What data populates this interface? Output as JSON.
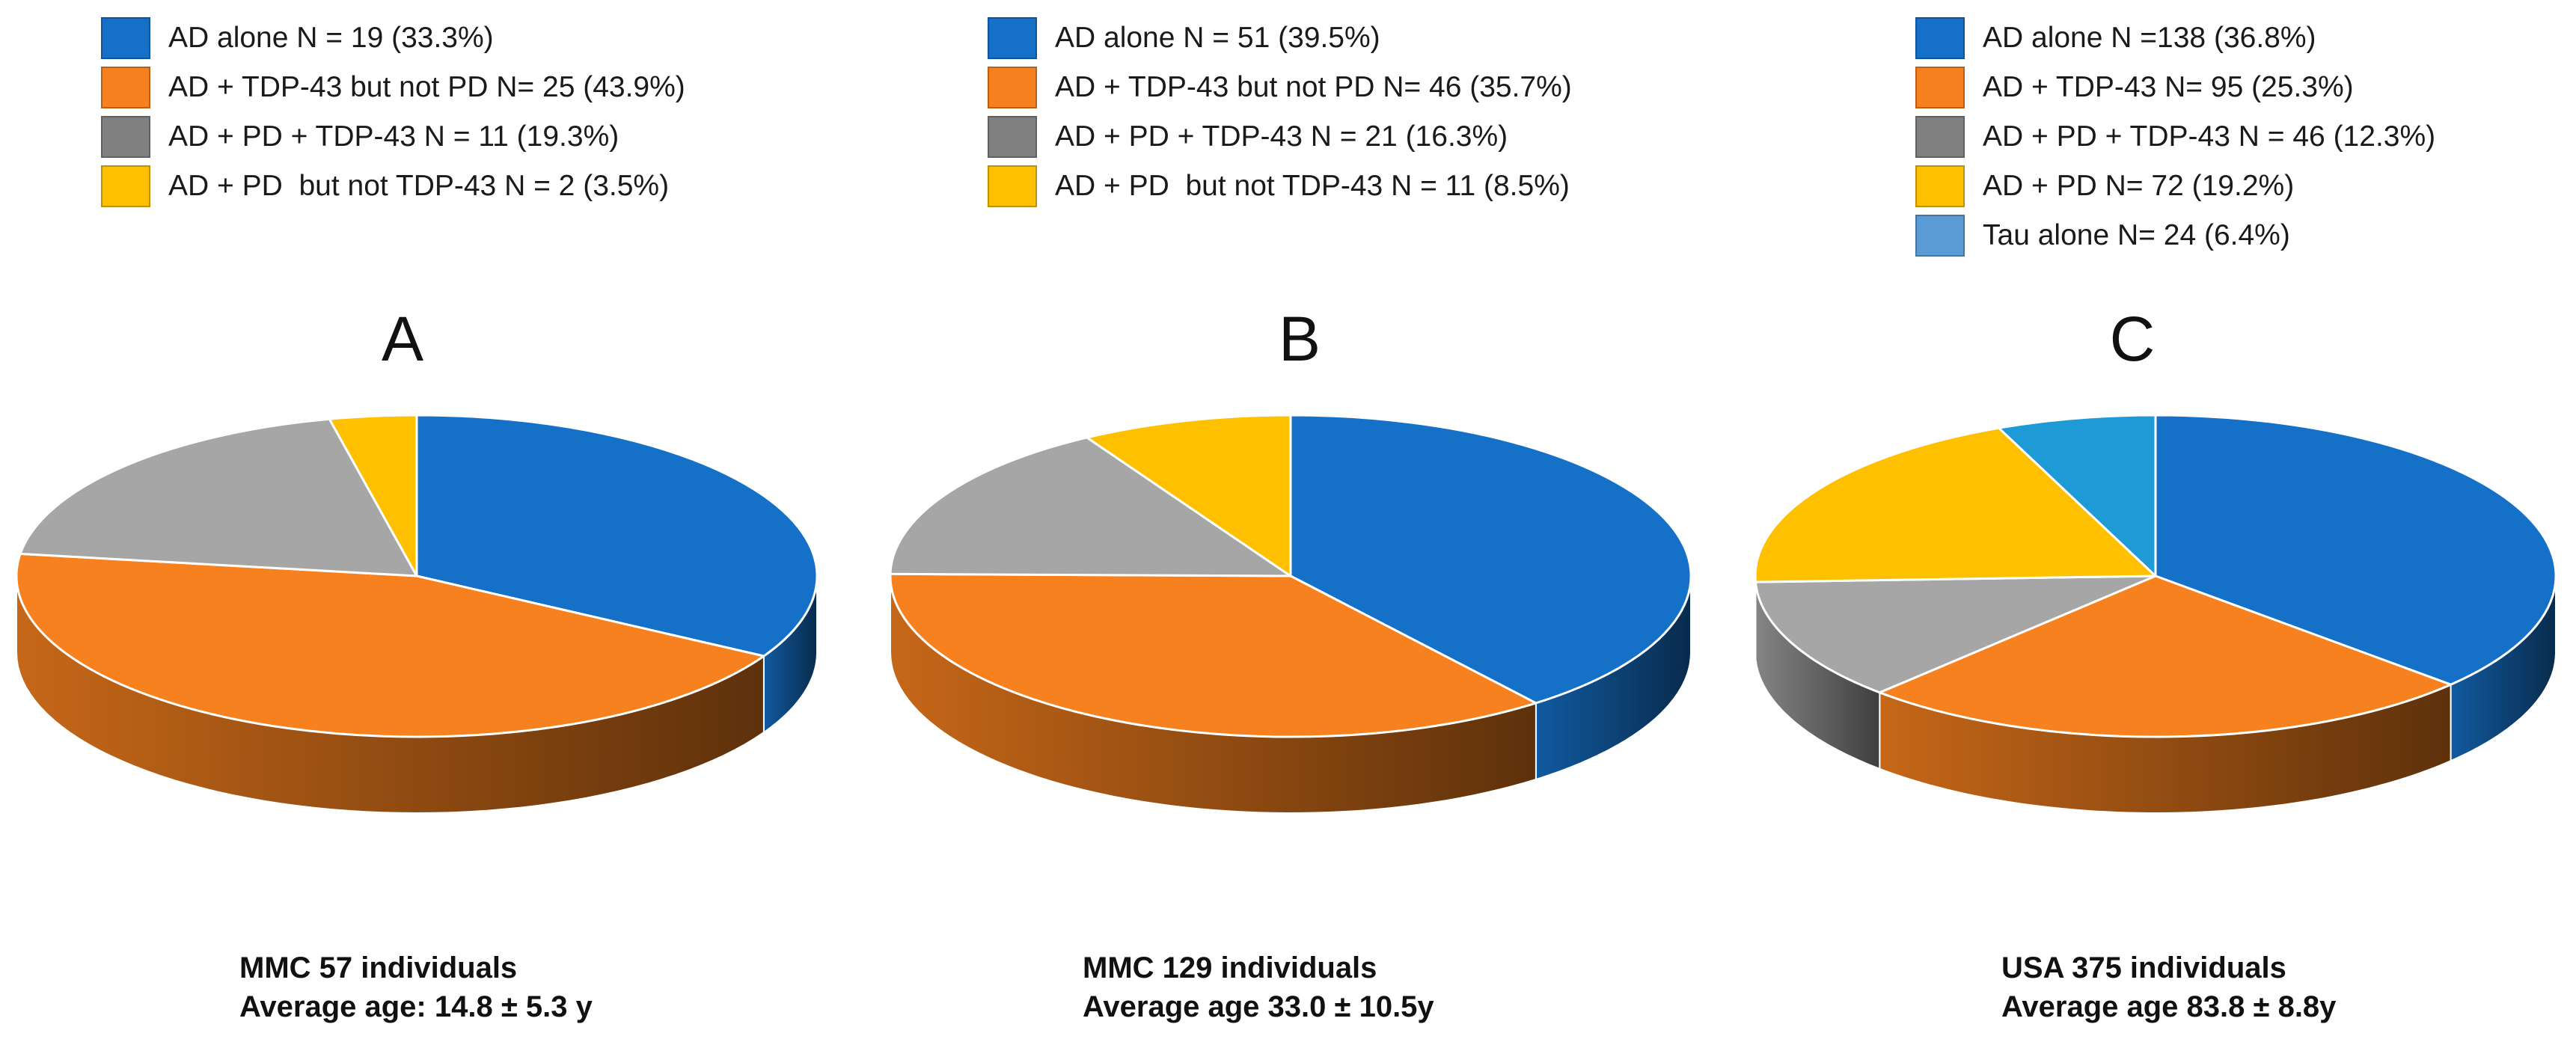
{
  "chart_data": [
    {
      "type": "pie",
      "panel": "A",
      "slices": [
        {
          "label": "AD alone N = 19 (33.3%)",
          "value": 33.3,
          "color": "#1570c8"
        },
        {
          "label": "AD + TDP-43 but not PD N= 25 (43.9%)",
          "value": 43.9,
          "color": "#f7811e"
        },
        {
          "label": "AD + PD + TDP-43 N = 11 (19.3%)",
          "value": 19.3,
          "color": "#a6a6a6"
        },
        {
          "label": "AD + PD  but not TDP-43 N = 2 (3.5%)",
          "value": 3.5,
          "color": "#ffc000"
        }
      ],
      "legend_colors": [
        "#1570c8",
        "#f7811e",
        "#808080",
        "#ffc000"
      ],
      "caption_line1": "MMC 57 individuals",
      "caption_line2": "Average age: 14.8 ± 5.3 y"
    },
    {
      "type": "pie",
      "panel": "B",
      "slices": [
        {
          "label": "AD alone N = 51 (39.5%)",
          "value": 39.5,
          "color": "#1570c8"
        },
        {
          "label": "AD + TDP-43 but not PD N= 46 (35.7%)",
          "value": 35.7,
          "color": "#f7811e"
        },
        {
          "label": "AD + PD + TDP-43 N = 21 (16.3%)",
          "value": 16.3,
          "color": "#a6a6a6"
        },
        {
          "label": "AD + PD  but not TDP-43 N = 11 (8.5%)",
          "value": 8.5,
          "color": "#ffc000"
        }
      ],
      "legend_colors": [
        "#1570c8",
        "#f7811e",
        "#808080",
        "#ffc000"
      ],
      "caption_line1": "MMC 129 individuals",
      "caption_line2": "Average age 33.0 ± 10.5y"
    },
    {
      "type": "pie",
      "panel": "C",
      "slices": [
        {
          "label": "AD alone N =138 (36.8%)",
          "value": 36.8,
          "color": "#1570c8"
        },
        {
          "label": "AD + TDP-43 N= 95 (25.3%)",
          "value": 25.3,
          "color": "#f7811e"
        },
        {
          "label": "AD + PD + TDP-43 N = 46 (12.3%)",
          "value": 12.3,
          "color": "#a6a6a6"
        },
        {
          "label": "AD + PD N= 72 (19.2%)",
          "value": 19.2,
          "color": "#ffc000"
        },
        {
          "label": "Tau alone N= 24 (6.4%)",
          "value": 6.4,
          "color": "#1e9ad6"
        }
      ],
      "legend_colors": [
        "#1570c8",
        "#f7811e",
        "#808080",
        "#ffc000",
        "#5b9bd5"
      ],
      "caption_line1": "USA 375 individuals",
      "caption_line2": "Average age 83.8 ± 8.8y"
    }
  ]
}
